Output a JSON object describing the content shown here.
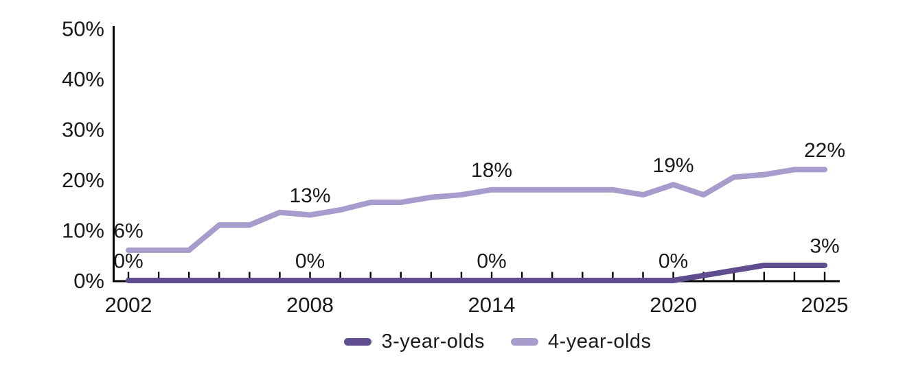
{
  "chart_data": {
    "type": "line",
    "title": "",
    "xlabel": "",
    "ylabel": "",
    "x": [
      2002,
      2003,
      2004,
      2005,
      2006,
      2007,
      2008,
      2009,
      2010,
      2011,
      2012,
      2013,
      2014,
      2015,
      2016,
      2017,
      2018,
      2019,
      2020,
      2021,
      2022,
      2023,
      2024,
      2025
    ],
    "series": [
      {
        "name": "3-year-olds",
        "color": "#5f4d8f",
        "values": [
          0,
          0,
          0,
          0,
          0,
          0,
          0,
          0,
          0,
          0,
          0,
          0,
          0,
          0,
          0,
          0,
          0,
          0,
          0,
          1,
          2,
          3,
          3,
          3
        ]
      },
      {
        "name": "4-year-olds",
        "color": "#a89ccd",
        "values": [
          6,
          6,
          6,
          11,
          11,
          13.5,
          13,
          14,
          15.5,
          15.5,
          16.5,
          17,
          18,
          18,
          18,
          18,
          18,
          17,
          19,
          17,
          20.5,
          21,
          22,
          22
        ]
      }
    ],
    "ylim": [
      0,
      50
    ],
    "yticks": [
      {
        "value": 0,
        "label": "0%"
      },
      {
        "value": 10,
        "label": "10%"
      },
      {
        "value": 20,
        "label": "20%"
      },
      {
        "value": 30,
        "label": "30%"
      },
      {
        "value": 40,
        "label": "40%"
      },
      {
        "value": 50,
        "label": "50%"
      }
    ],
    "xticks_labeled": [
      {
        "year": 2002,
        "label": "2002"
      },
      {
        "year": 2008,
        "label": "2008"
      },
      {
        "year": 2014,
        "label": "2014"
      },
      {
        "year": 2020,
        "label": "2020"
      },
      {
        "year": 2025,
        "label": "2025"
      }
    ],
    "grid": false,
    "legend_position": "bottom",
    "annotations": [
      {
        "series": "4-year-olds",
        "year": 2002,
        "value": 6,
        "label": "6%"
      },
      {
        "series": "4-year-olds",
        "year": 2008,
        "value": 13,
        "label": "13%"
      },
      {
        "series": "4-year-olds",
        "year": 2014,
        "value": 18,
        "label": "18%"
      },
      {
        "series": "4-year-olds",
        "year": 2020,
        "value": 19,
        "label": "19%"
      },
      {
        "series": "4-year-olds",
        "year": 2025,
        "value": 22,
        "label": "22%"
      },
      {
        "series": "3-year-olds",
        "year": 2002,
        "value": 0,
        "label": "0%"
      },
      {
        "series": "3-year-olds",
        "year": 2008,
        "value": 0,
        "label": "0%"
      },
      {
        "series": "3-year-olds",
        "year": 2014,
        "value": 0,
        "label": "0%"
      },
      {
        "series": "3-year-olds",
        "year": 2020,
        "value": 0,
        "label": "0%"
      },
      {
        "series": "3-year-olds",
        "year": 2025,
        "value": 3,
        "label": "3%"
      }
    ]
  },
  "colors": {
    "axis": "#000000",
    "text": "#1a1a1a",
    "background": "#ffffff"
  },
  "legend": {
    "items": [
      {
        "label": "3-year-olds",
        "color": "#5f4d8f"
      },
      {
        "label": "4-year-olds",
        "color": "#a89ccd"
      }
    ]
  }
}
